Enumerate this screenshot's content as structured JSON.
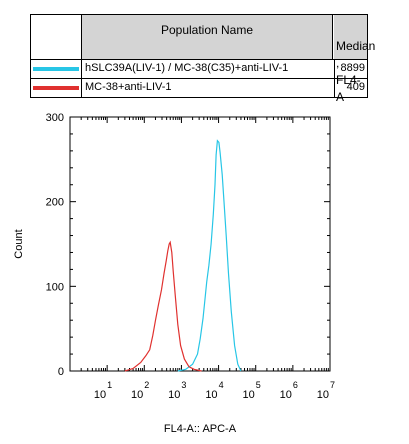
{
  "legend_table": {
    "header": {
      "name": "Population Name",
      "median": "Median ,\nFL4-A"
    },
    "rows": [
      {
        "color": "#27c6e6",
        "name": "hSLC39A(LIV-1) / MC-38(C35)+anti-LIV-1",
        "median": "8899"
      },
      {
        "color": "#e0312f",
        "name": "MC-38+anti-LIV-1",
        "median": "409"
      }
    ]
  },
  "chart_data": {
    "type": "line",
    "title": "",
    "xlabel": "FL4-A:: APC-A",
    "ylabel": "Count",
    "x_scale": "log",
    "xlim": [
      1,
      10000000
    ],
    "ylim": [
      0,
      300
    ],
    "y_ticks": [
      0,
      100,
      200,
      300
    ],
    "x_ticks": [
      {
        "value": 10,
        "base": "10",
        "exp": "1"
      },
      {
        "value": 100,
        "base": "10",
        "exp": "2"
      },
      {
        "value": 1000,
        "base": "10",
        "exp": "3"
      },
      {
        "value": 10000,
        "base": "10",
        "exp": "4"
      },
      {
        "value": 100000,
        "base": "10",
        "exp": "5"
      },
      {
        "value": 1000000,
        "base": "10",
        "exp": "6"
      },
      {
        "value": 10000000,
        "base": "10",
        "exp": "7"
      }
    ],
    "series": [
      {
        "name": "hSLC39A(LIV-1) / MC-38(C35)+anti-LIV-1",
        "color": "#27c6e6",
        "points": [
          [
            800,
            0
          ],
          [
            1300,
            2
          ],
          [
            2000,
            8
          ],
          [
            2700,
            20
          ],
          [
            3200,
            38
          ],
          [
            3800,
            62
          ],
          [
            4300,
            85
          ],
          [
            4800,
            105
          ],
          [
            5500,
            125
          ],
          [
            6300,
            150
          ],
          [
            7200,
            185
          ],
          [
            8000,
            220
          ],
          [
            8600,
            255
          ],
          [
            9300,
            272
          ],
          [
            10200,
            270
          ],
          [
            11000,
            258
          ],
          [
            12500,
            232
          ],
          [
            14000,
            200
          ],
          [
            16000,
            160
          ],
          [
            18500,
            115
          ],
          [
            22000,
            70
          ],
          [
            27000,
            30
          ],
          [
            33000,
            8
          ],
          [
            40000,
            0
          ]
        ]
      },
      {
        "name": "MC-38+anti-LIV-1",
        "color": "#e0312f",
        "points": [
          [
            30,
            0
          ],
          [
            50,
            3
          ],
          [
            80,
            10
          ],
          [
            110,
            18
          ],
          [
            140,
            25
          ],
          [
            170,
            42
          ],
          [
            200,
            60
          ],
          [
            240,
            78
          ],
          [
            290,
            96
          ],
          [
            340,
            115
          ],
          [
            390,
            130
          ],
          [
            430,
            142
          ],
          [
            470,
            150
          ],
          [
            500,
            152
          ],
          [
            550,
            140
          ],
          [
            600,
            118
          ],
          [
            680,
            90
          ],
          [
            800,
            55
          ],
          [
            950,
            30
          ],
          [
            1200,
            14
          ],
          [
            1600,
            5
          ],
          [
            2200,
            2
          ],
          [
            3500,
            0
          ]
        ]
      }
    ]
  }
}
